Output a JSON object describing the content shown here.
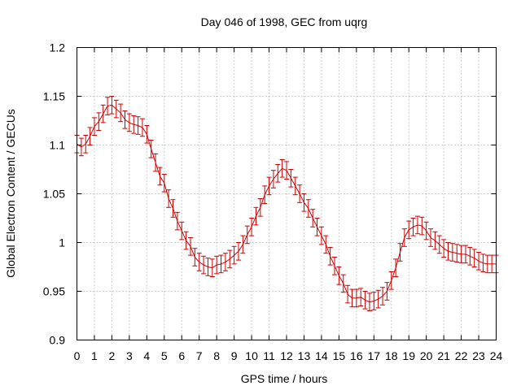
{
  "chart_data": {
    "type": "line",
    "title": "Day 046 of 1998, GEC from uqrg",
    "xlabel": "GPS time / hours",
    "ylabel": "Global Electron Content / GECUs",
    "xlim": [
      0,
      24
    ],
    "ylim": [
      0.9,
      1.2
    ],
    "grid": true,
    "series_color": "#cc0000",
    "x_ticks": [
      "0",
      "1",
      "2",
      "3",
      "4",
      "5",
      "6",
      "7",
      "8",
      "9",
      "10",
      "11",
      "12",
      "13",
      "14",
      "15",
      "16",
      "17",
      "18",
      "19",
      "20",
      "21",
      "22",
      "23",
      "24"
    ],
    "y_ticks": [
      {
        "value": 0.9,
        "label": "0.9"
      },
      {
        "value": 0.95,
        "label": "0.95"
      },
      {
        "value": 1.0,
        "label": "1"
      },
      {
        "value": 1.05,
        "label": "1.05"
      },
      {
        "value": 1.1,
        "label": "1.1"
      },
      {
        "value": 1.15,
        "label": "1.15"
      },
      {
        "value": 1.2,
        "label": "1.2"
      }
    ],
    "error": 0.009,
    "x_step": 0.25,
    "values": [
      1.101,
      1.098,
      1.101,
      1.109,
      1.119,
      1.124,
      1.132,
      1.14,
      1.141,
      1.137,
      1.133,
      1.126,
      1.123,
      1.121,
      1.12,
      1.118,
      1.111,
      1.096,
      1.082,
      1.068,
      1.061,
      1.045,
      1.035,
      1.022,
      1.012,
      1.002,
      0.996,
      0.985,
      0.98,
      0.977,
      0.975,
      0.974,
      0.977,
      0.978,
      0.98,
      0.983,
      0.987,
      0.991,
      0.998,
      1.008,
      1.016,
      1.027,
      1.036,
      1.049,
      1.058,
      1.065,
      1.071,
      1.076,
      1.074,
      1.066,
      1.058,
      1.05,
      1.041,
      1.035,
      1.025,
      1.016,
      1.007,
      0.998,
      0.986,
      0.976,
      0.966,
      0.958,
      0.947,
      0.943,
      0.943,
      0.944,
      0.941,
      0.939,
      0.94,
      0.942,
      0.945,
      0.95,
      0.961,
      0.974,
      0.99,
      1.005,
      1.013,
      1.016,
      1.018,
      1.017,
      1.012,
      1.005,
      1.002,
      0.998,
      0.994,
      0.991,
      0.99,
      0.989,
      0.988,
      0.988,
      0.986,
      0.984,
      0.981,
      0.979,
      0.978,
      0.978,
      0.978
    ]
  }
}
